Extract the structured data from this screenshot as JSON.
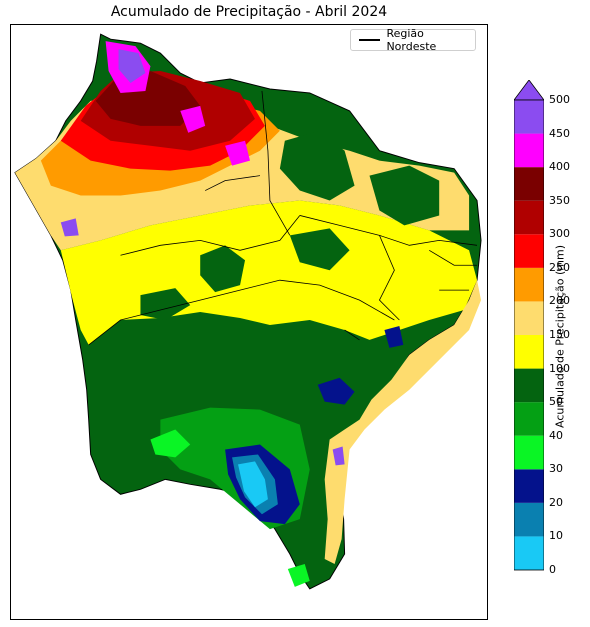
{
  "title": "Acumulado de Precipitação - Abril 2024",
  "legend": {
    "label": "Região Nordeste",
    "line_color": "#000000"
  },
  "colorbar": {
    "label": "Acumulado de Precipitação (mm)",
    "ticks": [
      "0",
      "10",
      "20",
      "30",
      "40",
      "50",
      "100",
      "150",
      "200",
      "250",
      "300",
      "350",
      "400",
      "450",
      "500"
    ],
    "colors": [
      "#19c9f5",
      "#0a80b0",
      "#04128c",
      "#0af525",
      "#04a014",
      "#046410",
      "#ffff00",
      "#fedc6e",
      "#ff9b00",
      "#ff0000",
      "#b00000",
      "#7a0000",
      "#ff00ff",
      "#8b4cf0"
    ],
    "extend_max_color": "#8b4cf0"
  },
  "colors": {
    "yellow": "#ffff00",
    "light_orange": "#fedc6e",
    "orange": "#ff9b00",
    "red": "#ff0000",
    "dark_red": "#b00000",
    "maroon": "#7a0000",
    "magenta": "#ff00ff",
    "purple": "#8b4cf0",
    "dark_green": "#046410",
    "green": "#04a014",
    "bright_green": "#0af525",
    "navy": "#04128c",
    "teal": "#0a80b0",
    "cyan": "#19c9f5"
  }
}
